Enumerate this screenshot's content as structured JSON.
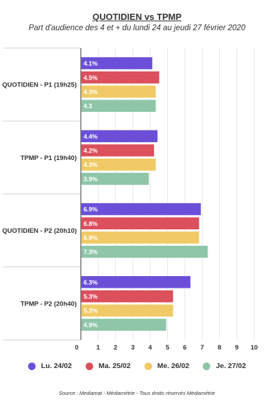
{
  "chart_data": {
    "type": "bar",
    "orientation": "horizontal",
    "title": "QUOTIDIEN vs TPMP",
    "subtitle": "Part d'audience des 4 et + du lundi 24 au jeudi 27 février 2020",
    "categories": [
      "QUOTIDIEN - P1 (19h25)",
      "TPMP - P1 (19h40)",
      "QUOTIDIEN - P2 (20h10)",
      "TPMP - P2 (20h40)"
    ],
    "series": [
      {
        "name": "Lu. 24/02",
        "color": "#6b4fd8",
        "values": [
          4.1,
          4.4,
          6.9,
          6.3
        ],
        "labels": [
          "4.1%",
          "4.4%",
          "6.9%",
          "6.3%"
        ]
      },
      {
        "name": "Ma. 25/02",
        "color": "#dc4f5c",
        "values": [
          4.5,
          4.2,
          6.8,
          5.3
        ],
        "labels": [
          "4.5%",
          "4.2%",
          "6.8%",
          "5.3%"
        ]
      },
      {
        "name": "Me. 26/02",
        "color": "#f0ca66",
        "values": [
          4.3,
          4.3,
          6.8,
          5.3
        ],
        "labels": [
          "4.3%",
          "4.3%",
          "6.8%",
          "5.3%"
        ]
      },
      {
        "name": "Je. 27/02",
        "color": "#8ec6a7",
        "values": [
          4.3,
          3.9,
          7.3,
          4.9
        ],
        "labels": [
          "4.3",
          "3.9%",
          "7.3%",
          "4.9%"
        ]
      }
    ],
    "xlim": [
      0,
      10
    ],
    "xticks": [
      "0",
      "1",
      "2",
      "3",
      "4",
      "5",
      "6",
      "7",
      "8",
      "9",
      "10"
    ],
    "grid": true,
    "legend_position": "bottom"
  },
  "source": "Source : Mediamat - Médiamétrie - Tous droits réservés Médiamétrie"
}
